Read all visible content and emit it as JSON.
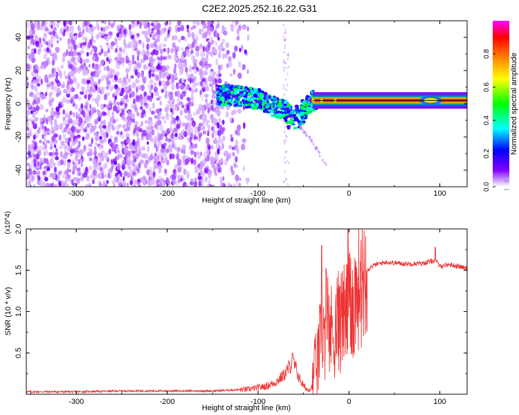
{
  "title": "C2E2.2025.252.16.22.G31",
  "chart_data": [
    {
      "type": "heatmap",
      "xlabel": "Height of straight line (km)",
      "ylabel": "Frequency (Hz)",
      "xlim": [
        -355,
        130
      ],
      "ylim": [
        -50,
        50
      ],
      "x_ticks": [
        -300,
        -200,
        -100,
        0,
        100
      ],
      "x_tick_labels": [
        "-300",
        "-200",
        "-100",
        "0",
        "100"
      ],
      "y_ticks": [
        -40,
        -20,
        0,
        20,
        40
      ],
      "y_tick_labels": [
        "-40",
        "-20",
        "0",
        "20",
        "40"
      ],
      "colorbar": {
        "label": "Normalized spectral amplitude",
        "range": [
          0,
          1
        ],
        "ticks": [
          0.0,
          0.2,
          0.4,
          0.6,
          0.8
        ],
        "tick_labels": [
          "0.0",
          "0.2",
          "0.4",
          "0.6",
          "0.8"
        ],
        "colormap": [
          "#ffffff",
          "#8000ff",
          "#0000ff",
          "#00ffff",
          "#00ff00",
          "#ffff00",
          "#ff8000",
          "#ff0000",
          "#ff00ff"
        ]
      },
      "regions": [
        {
          "description": "noise",
          "x": [
            -355,
            -110
          ],
          "freq": [
            -50,
            50
          ],
          "amplitude": 0.1
        },
        {
          "description": "signal cluster",
          "x": [
            -145,
            -35
          ],
          "freq_center": [
            5,
            0
          ],
          "amplitude": 0.3
        },
        {
          "description": "tone",
          "x": [
            -40,
            130
          ],
          "freq_center": 2,
          "amplitude": 0.9
        }
      ],
      "tone_center": [
        [
          -145,
          5
        ],
        [
          -130,
          5
        ],
        [
          -115,
          4
        ],
        [
          -100,
          3
        ],
        [
          -85,
          -2
        ],
        [
          -70,
          -3
        ],
        [
          -60,
          -6
        ],
        [
          -50,
          -4
        ],
        [
          -40,
          2
        ],
        [
          -20,
          2
        ],
        [
          0,
          2
        ],
        [
          50,
          2
        ],
        [
          100,
          2
        ],
        [
          130,
          2
        ]
      ],
      "grid": false
    },
    {
      "type": "line",
      "xlabel": "Height of straight line (km)",
      "ylabel": "SNR (10 * v/v)",
      "y_multiplier": "(x10^4)",
      "xlim": [
        -355,
        130
      ],
      "ylim": [
        0,
        2.0
      ],
      "x_ticks": [
        -300,
        -200,
        -100,
        0,
        100
      ],
      "x_tick_labels": [
        "-300",
        "-200",
        "-100",
        "0",
        "100"
      ],
      "y_ticks": [
        0.5,
        1.0,
        1.5,
        2.0
      ],
      "y_tick_labels": [
        "0.5",
        "1.0",
        "1.5",
        "2.0"
      ],
      "color": "#ee3333",
      "series": [
        {
          "x": [
            -355,
            -300,
            -250,
            -200,
            -150,
            -110,
            -90,
            -80,
            -70,
            -62,
            -58,
            -55,
            -50,
            -45,
            -40,
            -35,
            -30,
            -25,
            -20,
            -15,
            -10,
            -5,
            0,
            5,
            10,
            15,
            20,
            25,
            30,
            40,
            60,
            80,
            95,
            100,
            110,
            120,
            130
          ],
          "y": [
            0.03,
            0.03,
            0.04,
            0.04,
            0.04,
            0.06,
            0.1,
            0.15,
            0.25,
            0.4,
            0.3,
            0.2,
            0.1,
            0.05,
            0.1,
            0.4,
            0.7,
            0.8,
            0.75,
            0.8,
            0.9,
            0.95,
            1.0,
            1.1,
            1.3,
            1.45,
            1.5,
            1.55,
            1.57,
            1.6,
            1.58,
            1.58,
            1.62,
            1.55,
            1.57,
            1.55,
            1.52
          ]
        }
      ],
      "spikes": [
        {
          "x": -62,
          "y": 0.5
        },
        {
          "x": -30,
          "y": 1.8
        },
        {
          "x": -25,
          "y": 1.5
        },
        {
          "x": -10,
          "y": 1.3
        },
        {
          "x": -1,
          "y": 2.0
        },
        {
          "x": 95,
          "y": 1.78
        }
      ],
      "grid": false
    }
  ]
}
